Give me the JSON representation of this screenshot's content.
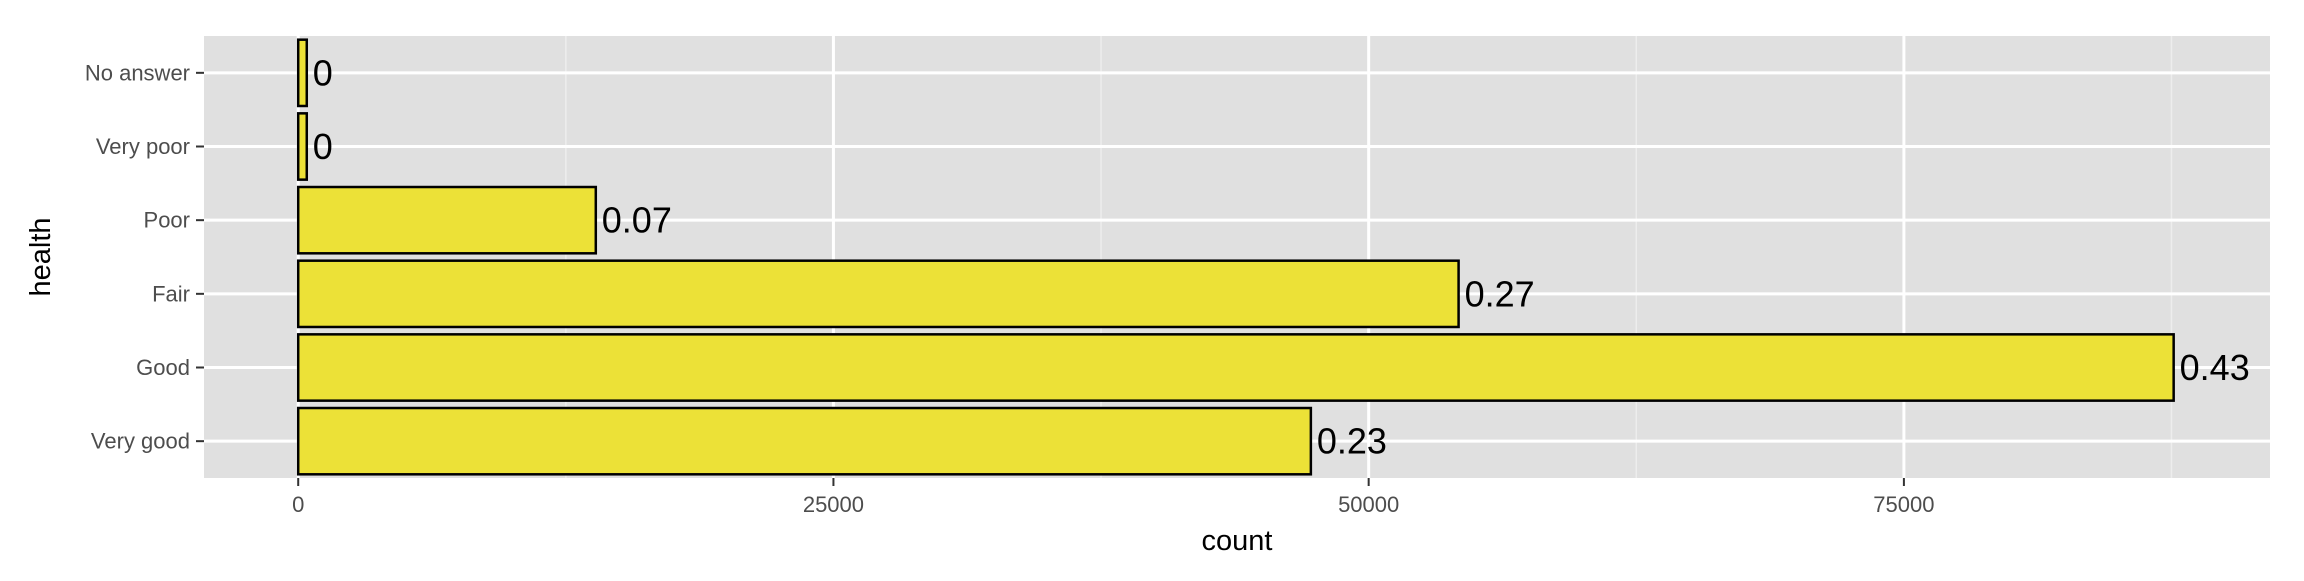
{
  "chart_data": {
    "type": "bar",
    "orientation": "horizontal",
    "title": "",
    "xlabel": "count",
    "ylabel": "health",
    "categories": [
      "Very good",
      "Good",
      "Fair",
      "Poor",
      "Very poor",
      "No answer"
    ],
    "values": [
      47300,
      87600,
      54200,
      13900,
      400,
      400
    ],
    "data_labels": [
      "0.23",
      "0.43",
      "0.27",
      "0.07",
      "0",
      "0"
    ],
    "xlim": [
      -4400,
      92100
    ],
    "x_ticks": [
      0,
      25000,
      50000,
      75000
    ],
    "x_tick_labels": [
      "0",
      "25000",
      "50000",
      "75000"
    ],
    "grid": true,
    "legend": "none",
    "colors": {
      "bar_fill": "#ece137",
      "bar_stroke": "#000000",
      "panel_background": "#e0e0e0",
      "grid_major": "#ffffff",
      "grid_minor": "#ededed",
      "tick_label": "#4d4d4d",
      "axis_title": "#000000"
    }
  }
}
